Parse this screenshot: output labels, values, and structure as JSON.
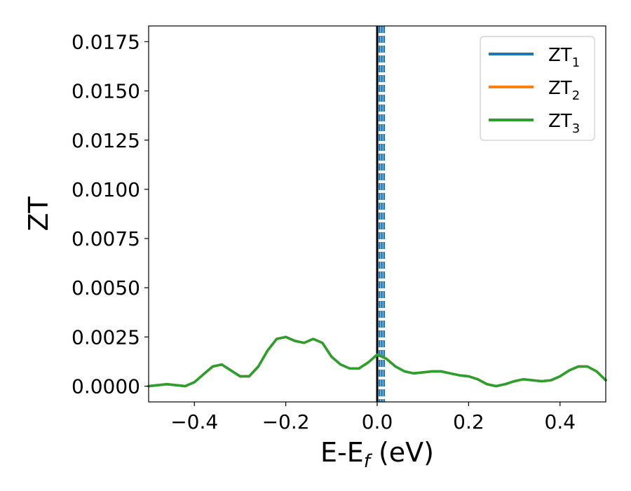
{
  "chart_data": {
    "type": "line",
    "xlabel": "E-E",
    "xlabel_sub": "f",
    "xlabel_unit": " (eV)",
    "ylabel": "ZT",
    "xlim": [
      -0.5,
      0.5
    ],
    "ylim": [
      -0.0008,
      0.0183
    ],
    "x_ticks": [
      -0.4,
      -0.2,
      0.0,
      0.2,
      0.4
    ],
    "x_tick_labels": [
      "−0.4",
      "−0.2",
      "0.0",
      "0.2",
      "0.4"
    ],
    "y_ticks": [
      0.0,
      0.0025,
      0.005,
      0.0075,
      0.01,
      0.0125,
      0.015,
      0.0175
    ],
    "y_tick_labels": [
      "0.0000",
      "0.0025",
      "0.0050",
      "0.0075",
      "0.0100",
      "0.0125",
      "0.0150",
      "0.0175"
    ],
    "grid": false,
    "legend_position": "top-right",
    "vertical_lines": [
      {
        "x": 0.0,
        "style": "solid",
        "color": "#000000"
      },
      {
        "x": 0.005,
        "style": "dashed",
        "color": "#1f77b4"
      },
      {
        "x": 0.01,
        "style": "dashed",
        "color": "#1f77b4"
      },
      {
        "x": 0.015,
        "style": "dashed",
        "color": "#1f77b4"
      }
    ],
    "x": [
      -0.5,
      -0.48,
      -0.46,
      -0.44,
      -0.42,
      -0.4,
      -0.38,
      -0.36,
      -0.34,
      -0.32,
      -0.3,
      -0.28,
      -0.26,
      -0.24,
      -0.22,
      -0.2,
      -0.18,
      -0.16,
      -0.14,
      -0.12,
      -0.1,
      -0.08,
      -0.06,
      -0.04,
      -0.02,
      0.0,
      0.02,
      0.04,
      0.06,
      0.08,
      0.1,
      0.12,
      0.14,
      0.16,
      0.18,
      0.2,
      0.22,
      0.24,
      0.26,
      0.28,
      0.3,
      0.32,
      0.34,
      0.36,
      0.38,
      0.4,
      0.42,
      0.44,
      0.46,
      0.48,
      0.5
    ],
    "series": [
      {
        "name": "ZT",
        "sub": "1",
        "color": "#1f77b4",
        "values": [
          0.0,
          5e-05,
          0.0001,
          5e-05,
          0.0,
          0.0002,
          0.0006,
          0.001,
          0.0011,
          0.0008,
          0.0005,
          0.0005,
          0.001,
          0.0018,
          0.0024,
          0.0025,
          0.0023,
          0.0022,
          0.0024,
          0.0022,
          0.0015,
          0.0011,
          0.0009,
          0.0009,
          0.0012,
          0.0016,
          0.0014,
          0.001,
          0.00075,
          0.00065,
          0.0007,
          0.00075,
          0.00075,
          0.00065,
          0.00055,
          0.0005,
          0.00035,
          0.0001,
          0.0,
          0.0001,
          0.00025,
          0.00035,
          0.0003,
          0.00025,
          0.0003,
          0.0005,
          0.0008,
          0.001,
          0.001,
          0.00075,
          0.0003
        ]
      },
      {
        "name": "ZT",
        "sub": "2",
        "color": "#ff7f0e",
        "values": [
          0.0,
          5e-05,
          0.0001,
          5e-05,
          0.0,
          0.0002,
          0.0006,
          0.001,
          0.0011,
          0.0008,
          0.0005,
          0.0005,
          0.001,
          0.0018,
          0.0024,
          0.0025,
          0.0023,
          0.0022,
          0.0024,
          0.0022,
          0.0015,
          0.0011,
          0.0009,
          0.0009,
          0.0012,
          0.0016,
          0.0014,
          0.001,
          0.00075,
          0.00065,
          0.0007,
          0.00075,
          0.00075,
          0.00065,
          0.00055,
          0.0005,
          0.00035,
          0.0001,
          0.0,
          0.0001,
          0.00025,
          0.00035,
          0.0003,
          0.00025,
          0.0003,
          0.0005,
          0.0008,
          0.001,
          0.001,
          0.00075,
          0.0003
        ]
      },
      {
        "name": "ZT",
        "sub": "3",
        "color": "#2ca02c",
        "values": [
          0.0,
          5e-05,
          0.0001,
          5e-05,
          0.0,
          0.0002,
          0.0006,
          0.001,
          0.0011,
          0.0008,
          0.0005,
          0.0005,
          0.001,
          0.0018,
          0.0024,
          0.0025,
          0.0023,
          0.0022,
          0.0024,
          0.0022,
          0.0015,
          0.0011,
          0.0009,
          0.0009,
          0.0012,
          0.0016,
          0.0014,
          0.001,
          0.00075,
          0.00065,
          0.0007,
          0.00075,
          0.00075,
          0.00065,
          0.00055,
          0.0005,
          0.00035,
          0.0001,
          0.0,
          0.0001,
          0.00025,
          0.00035,
          0.0003,
          0.00025,
          0.0003,
          0.0005,
          0.0008,
          0.001,
          0.001,
          0.00075,
          0.0003
        ]
      }
    ]
  }
}
